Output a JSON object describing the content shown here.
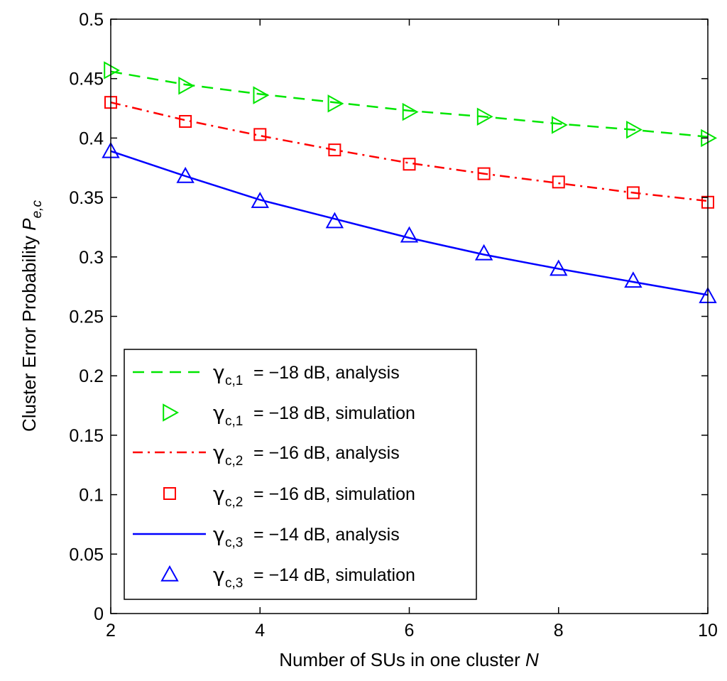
{
  "chart_data": {
    "type": "line",
    "xlabel": "Number of SUs in one cluster",
    "xlabel_var": "N",
    "ylabel": "Cluster Error Probability",
    "ylabel_var": "P",
    "ylabel_sub": "e,c",
    "xlim": [
      2,
      10
    ],
    "ylim": [
      0,
      0.5
    ],
    "xticks": [
      2,
      4,
      6,
      8,
      10
    ],
    "xtick_labels": [
      "2",
      "4",
      "6",
      "8",
      "10"
    ],
    "yticks": [
      0,
      0.05,
      0.1,
      0.15,
      0.2,
      0.25,
      0.3,
      0.35,
      0.4,
      0.45,
      0.5
    ],
    "ytick_labels": [
      "0",
      "0.05",
      "0.1",
      "0.15",
      "0.2",
      "0.25",
      "0.3",
      "0.35",
      "0.4",
      "0.45",
      "0.5"
    ],
    "grid": false,
    "legend_position": "bottom-left",
    "series": [
      {
        "name": "γc,1 = −18 dB, analysis",
        "style": "dashed",
        "color": "#00e600",
        "x": [
          2,
          3,
          4,
          5,
          6,
          7,
          8,
          9,
          10
        ],
        "y": [
          0.456,
          0.445,
          0.437,
          0.43,
          0.423,
          0.418,
          0.412,
          0.407,
          0.401
        ]
      },
      {
        "name": "γc,1 = −18 dB, simulation",
        "marker": "triangle-right",
        "color": "#00e600",
        "x": [
          2,
          3,
          4,
          5,
          6,
          7,
          8,
          9,
          10
        ],
        "y": [
          0.457,
          0.444,
          0.436,
          0.429,
          0.422,
          0.418,
          0.411,
          0.407,
          0.4
        ]
      },
      {
        "name": "γc,2 = −16 dB, analysis",
        "style": "dashdot",
        "color": "#ff0000",
        "x": [
          2,
          3,
          4,
          5,
          6,
          7,
          8,
          9,
          10
        ],
        "y": [
          0.43,
          0.415,
          0.402,
          0.39,
          0.379,
          0.37,
          0.362,
          0.354,
          0.347
        ]
      },
      {
        "name": "γc,2 = −16 dB, simulation",
        "marker": "square",
        "color": "#ff0000",
        "x": [
          2,
          3,
          4,
          5,
          6,
          7,
          8,
          9,
          10
        ],
        "y": [
          0.43,
          0.414,
          0.403,
          0.39,
          0.378,
          0.37,
          0.363,
          0.354,
          0.346
        ]
      },
      {
        "name": "γc,3 = −14 dB, analysis",
        "style": "solid",
        "color": "#0000ff",
        "x": [
          2,
          3,
          4,
          5,
          6,
          7,
          8,
          9,
          10
        ],
        "y": [
          0.389,
          0.368,
          0.348,
          0.332,
          0.316,
          0.302,
          0.29,
          0.279,
          0.268
        ]
      },
      {
        "name": "γc,3 = −14 dB, simulation",
        "marker": "triangle-up",
        "color": "#0000ff",
        "x": [
          2,
          3,
          4,
          5,
          6,
          7,
          8,
          9,
          10
        ],
        "y": [
          0.389,
          0.368,
          0.347,
          0.33,
          0.318,
          0.303,
          0.29,
          0.28,
          0.267
        ]
      }
    ],
    "legend": [
      {
        "gamma": "γ",
        "sub": "c,1",
        "text": "= −18 dB, analysis"
      },
      {
        "gamma": "γ",
        "sub": "c,1",
        "text": "= −18 dB, simulation"
      },
      {
        "gamma": "γ",
        "sub": "c,2",
        "text": "= −16 dB, analysis"
      },
      {
        "gamma": "γ",
        "sub": "c,2",
        "text": "= −16 dB, simulation"
      },
      {
        "gamma": "γ",
        "sub": "c,3",
        "text": "= −14 dB, analysis"
      },
      {
        "gamma": "γ",
        "sub": "c,3",
        "text": "= −14 dB, simulation"
      }
    ]
  }
}
